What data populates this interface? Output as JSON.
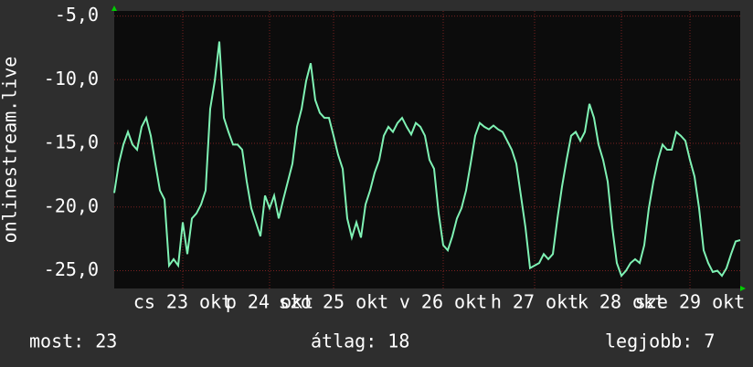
{
  "chart_data": {
    "type": "line",
    "ylabel": "onlinestream.live",
    "categories": [
      null,
      null,
      null,
      null,
      null,
      null,
      null,
      null,
      null,
      null,
      null,
      null,
      null,
      null,
      null,
      "cs 23 okt",
      null,
      null,
      null,
      null,
      null,
      null,
      null,
      null,
      null,
      null,
      null,
      null,
      null,
      null,
      null,
      null,
      null,
      null,
      "p 24 okt",
      null,
      null,
      null,
      null,
      null,
      null,
      null,
      null,
      null,
      null,
      null,
      null,
      null,
      "szo 25 okt",
      null,
      null,
      null,
      null,
      null,
      null,
      null,
      null,
      null,
      null,
      null,
      null,
      null,
      null,
      null,
      null,
      null,
      null,
      null,
      null,
      null,
      null,
      null,
      "v 26 okt",
      null,
      null,
      null,
      null,
      null,
      null,
      null,
      null,
      null,
      null,
      null,
      null,
      null,
      null,
      null,
      null,
      null,
      null,
      null,
      "h 27 okt",
      null,
      null,
      null,
      null,
      null,
      null,
      null,
      null,
      null,
      null,
      null,
      null,
      null,
      null,
      null,
      null,
      null,
      null,
      "k 28 okt",
      null,
      null,
      null,
      null,
      null,
      null,
      null,
      null,
      null,
      null,
      null,
      null,
      null,
      null,
      "sze 29 okt",
      null,
      null,
      null,
      null,
      null,
      null,
      null,
      null,
      null,
      null,
      null
    ],
    "series": [
      {
        "color": "#7ff2b4",
        "values": [
          -18.9,
          -16.6,
          -15.1,
          -14.1,
          -15.1,
          -15.5,
          -13.7,
          -13.0,
          -14.4,
          -16.6,
          -18.7,
          -19.4,
          -24.6,
          -24.1,
          -24.6,
          -21.2,
          -23.7,
          -20.9,
          -20.5,
          -19.8,
          -18.7,
          -12.3,
          -10.1,
          -7.0,
          -13.0,
          -14.1,
          -15.1,
          -15.1,
          -15.5,
          -18.0,
          -20.1,
          -21.2,
          -22.3,
          -19.1,
          -20.1,
          -19.1,
          -20.9,
          -19.4,
          -18.0,
          -16.6,
          -13.7,
          -12.3,
          -10.1,
          -8.7,
          -11.6,
          -12.6,
          -13.0,
          -13.0,
          -14.4,
          -15.9,
          -17.0,
          -20.9,
          -22.4,
          -21.2,
          -22.4,
          -19.8,
          -18.7,
          -17.3,
          -16.3,
          -14.4,
          -13.7,
          -14.1,
          -13.4,
          -13.0,
          -13.7,
          -14.3,
          -13.4,
          -13.7,
          -14.4,
          -16.3,
          -17.0,
          -20.5,
          -23.0,
          -23.4,
          -22.3,
          -20.9,
          -20.1,
          -18.7,
          -16.6,
          -14.4,
          -13.4,
          -13.7,
          -13.9,
          -13.6,
          -13.9,
          -14.1,
          -14.8,
          -15.5,
          -16.6,
          -19.1,
          -21.6,
          -24.8,
          -24.6,
          -24.4,
          -23.7,
          -24.1,
          -23.7,
          -20.9,
          -18.4,
          -16.3,
          -14.4,
          -14.1,
          -14.8,
          -14.1,
          -11.9,
          -13.0,
          -15.1,
          -16.3,
          -18.0,
          -21.6,
          -24.4,
          -25.4,
          -25.0,
          -24.4,
          -24.1,
          -24.4,
          -23.0,
          -20.1,
          -18.0,
          -16.3,
          -15.1,
          -15.5,
          -15.5,
          -14.1,
          -14.4,
          -14.8,
          -16.3,
          -17.6,
          -20.1,
          -23.4,
          -24.4,
          -25.1,
          -25.0,
          -25.4,
          -24.8,
          -23.7,
          -22.7,
          -22.6
        ]
      }
    ],
    "ylim": [
      -26.4,
      -4.6
    ],
    "yticks": [
      {
        "value": -5,
        "label": "-5,0"
      },
      {
        "value": -10,
        "label": "-10,0"
      },
      {
        "value": -15,
        "label": "-15,0"
      },
      {
        "value": -20,
        "label": "-20,0"
      },
      {
        "value": -25,
        "label": "-25,0"
      }
    ],
    "grid": true
  },
  "footer": {
    "current": "most: 23",
    "average": "átlag: 18",
    "best": "legjobb: 7"
  }
}
